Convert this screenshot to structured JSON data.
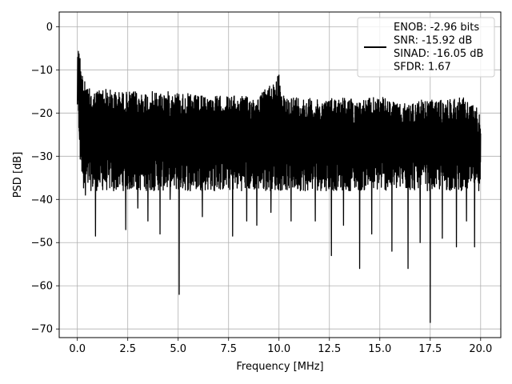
{
  "chart_data": {
    "type": "line",
    "title": "",
    "xlabel": "Frequency [MHz]",
    "ylabel": "PSD [dB]",
    "xlim": [
      -0.9,
      21.0
    ],
    "ylim": [
      -72.0,
      3.4
    ],
    "grid": true,
    "x_ticks": [
      0.0,
      2.5,
      5.0,
      7.5,
      10.0,
      12.5,
      15.0,
      17.5,
      20.0
    ],
    "x_tick_labels": [
      "0.0",
      "2.5",
      "5.0",
      "7.5",
      "10.0",
      "12.5",
      "15.0",
      "17.5",
      "20.0"
    ],
    "y_ticks": [
      0,
      -10,
      -20,
      -30,
      -40,
      -50,
      -60,
      -70
    ],
    "y_tick_labels": [
      "0",
      "−10",
      "−20",
      "−30",
      "−40",
      "−50",
      "−60",
      "−70"
    ],
    "legend_position": "top-right",
    "legend_lines": [
      "ENOB: -2.96 bits",
      "SNR: -15.92 dB",
      "SINAD: -16.05 dB",
      "SFDR: 1.67"
    ],
    "series": [
      {
        "color": "#000000",
        "upper_envelope": [
          [
            0.0,
            0
          ],
          [
            0.1,
            -5
          ],
          [
            0.2,
            -8
          ],
          [
            0.3,
            -12
          ],
          [
            0.5,
            -14
          ],
          [
            0.8,
            -15
          ],
          [
            1.2,
            -14
          ],
          [
            2.0,
            -15
          ],
          [
            3.0,
            -15
          ],
          [
            4.0,
            -15
          ],
          [
            5.0,
            -15
          ],
          [
            6.0,
            -16
          ],
          [
            7.0,
            -16
          ],
          [
            8.0,
            -16
          ],
          [
            9.0,
            -16
          ],
          [
            10.0,
            -11
          ],
          [
            10.1,
            -16
          ],
          [
            11.0,
            -16
          ],
          [
            12.0,
            -17
          ],
          [
            13.0,
            -16
          ],
          [
            14.0,
            -17
          ],
          [
            15.0,
            -16
          ],
          [
            16.0,
            -18
          ],
          [
            17.0,
            -17
          ],
          [
            18.0,
            -17
          ],
          [
            19.0,
            -16
          ],
          [
            20.0,
            -19
          ]
        ],
        "dips": [
          [
            0.0,
            -18
          ],
          [
            0.1,
            -24
          ],
          [
            0.2,
            -28
          ],
          [
            0.4,
            -39
          ],
          [
            0.9,
            -48.5
          ],
          [
            1.3,
            -35
          ],
          [
            1.8,
            -38
          ],
          [
            2.4,
            -47
          ],
          [
            3.0,
            -42
          ],
          [
            3.5,
            -45
          ],
          [
            4.1,
            -48
          ],
          [
            4.6,
            -40
          ],
          [
            5.05,
            -62
          ],
          [
            5.6,
            -38
          ],
          [
            6.2,
            -44
          ],
          [
            6.8,
            -38
          ],
          [
            7.7,
            -48.5
          ],
          [
            8.4,
            -45
          ],
          [
            8.9,
            -46
          ],
          [
            9.6,
            -43
          ],
          [
            10.6,
            -45
          ],
          [
            11.3,
            -38
          ],
          [
            11.8,
            -45
          ],
          [
            12.6,
            -53
          ],
          [
            13.2,
            -46
          ],
          [
            14.0,
            -56
          ],
          [
            14.6,
            -48
          ],
          [
            15.6,
            -52
          ],
          [
            16.4,
            -56
          ],
          [
            17.0,
            -50
          ],
          [
            17.5,
            -68.5
          ],
          [
            18.1,
            -49
          ],
          [
            18.8,
            -51
          ],
          [
            19.3,
            -45
          ],
          [
            19.7,
            -51
          ]
        ],
        "typical_low": -34
      }
    ]
  }
}
